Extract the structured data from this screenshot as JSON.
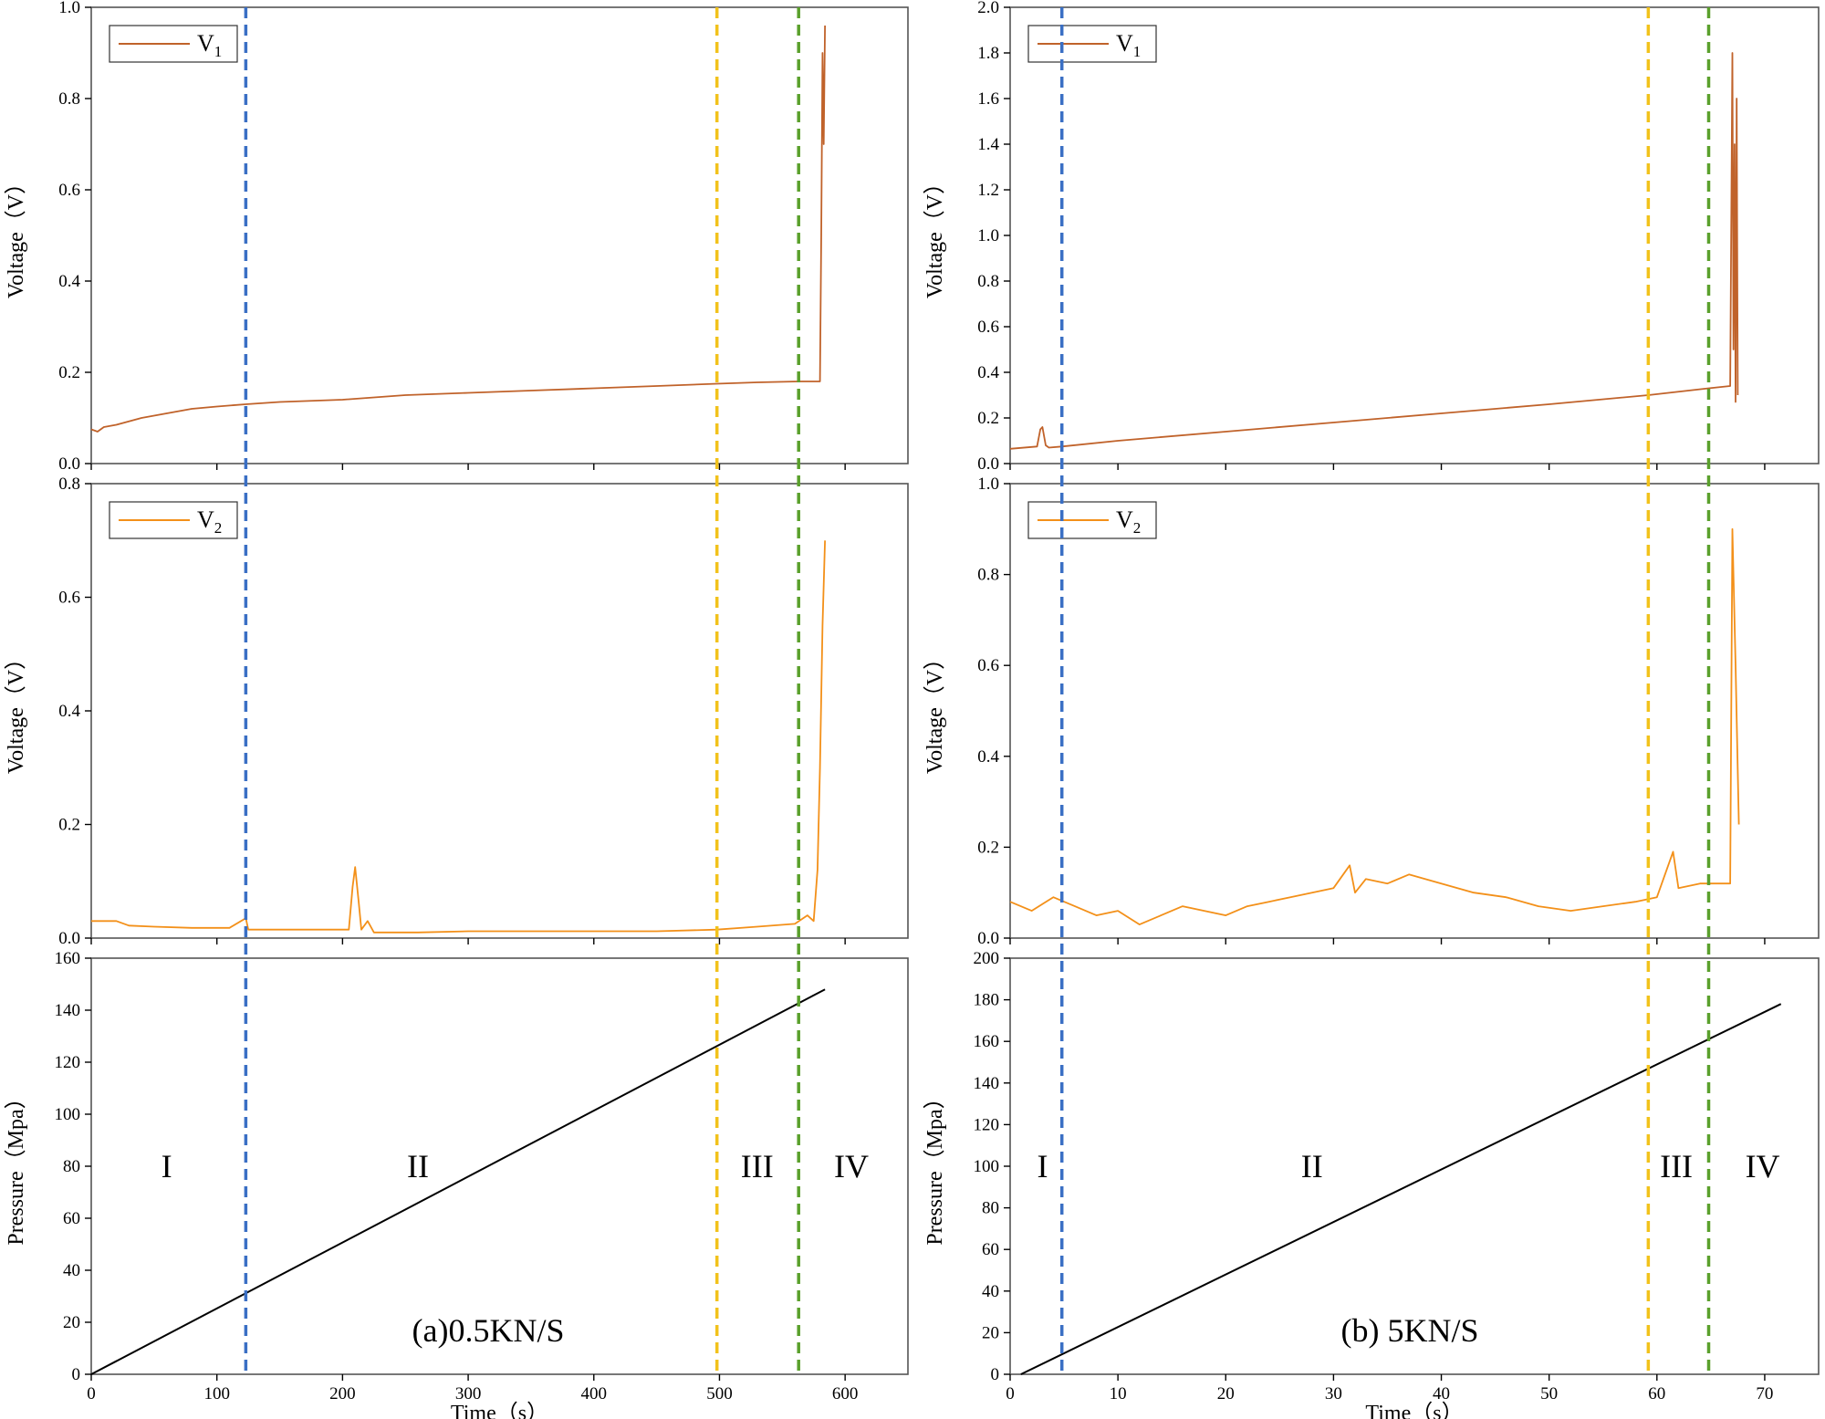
{
  "colors": {
    "v1": "#c0622a",
    "v2": "#f39019",
    "pressure": "#000000",
    "blue_line": "#3a6fc4",
    "yellow_line": "#f2c21b",
    "green_line": "#5aa02c",
    "frame": "#555555"
  },
  "stage_labels": [
    "I",
    "II",
    "III",
    "IV"
  ],
  "chart_data": [
    {
      "panel": "a",
      "caption": "(a)0.5KN/S",
      "type": "line",
      "xlabel": "Time（s）",
      "xlim": [
        0,
        650
      ],
      "xticks": [
        0,
        100,
        200,
        300,
        400,
        500,
        600
      ],
      "xticklabels": [
        "0",
        "100",
        "200",
        "300",
        "400",
        "500",
        "600"
      ],
      "stage_boundaries": [
        123,
        498,
        563
      ],
      "stage_label_x": [
        60,
        260,
        530,
        605
      ],
      "subplots": [
        {
          "ylabel": "Voltage（V）",
          "ylim": [
            0,
            1.0
          ],
          "yticks": [
            0,
            0.2,
            0.4,
            0.6,
            0.8,
            1.0
          ],
          "yticklabels": [
            "0.0",
            "0.2",
            "0.4",
            "0.6",
            "0.8",
            "1.0"
          ],
          "legend": {
            "label": "V",
            "sub": "1"
          },
          "series": [
            {
              "name": "V1",
              "color_key": "v1",
              "x": [
                0,
                5,
                10,
                20,
                40,
                60,
                80,
                100,
                123,
                150,
                200,
                250,
                300,
                350,
                400,
                450,
                498,
                530,
                563,
                580,
                581,
                582,
                583,
                584
              ],
              "y": [
                0.075,
                0.07,
                0.08,
                0.085,
                0.1,
                0.11,
                0.12,
                0.125,
                0.13,
                0.135,
                0.14,
                0.15,
                0.155,
                0.16,
                0.165,
                0.17,
                0.175,
                0.178,
                0.18,
                0.18,
                0.5,
                0.9,
                0.7,
                0.96
              ]
            }
          ]
        },
        {
          "ylabel": "Voltage（V）",
          "ylim": [
            0,
            0.8
          ],
          "yticks": [
            0,
            0.2,
            0.4,
            0.6,
            0.8
          ],
          "yticklabels": [
            "0.0",
            "0.2",
            "0.4",
            "0.6",
            "0.8"
          ],
          "legend": {
            "label": "V",
            "sub": "2"
          },
          "series": [
            {
              "name": "V2",
              "color_key": "v2",
              "x": [
                0,
                20,
                30,
                50,
                80,
                110,
                123,
                125,
                140,
                180,
                205,
                208,
                210,
                213,
                215,
                220,
                225,
                260,
                300,
                350,
                400,
                450,
                498,
                530,
                560,
                570,
                575,
                578,
                580,
                582,
                584
              ],
              "y": [
                0.03,
                0.03,
                0.022,
                0.02,
                0.018,
                0.018,
                0.035,
                0.015,
                0.015,
                0.015,
                0.015,
                0.09,
                0.125,
                0.06,
                0.015,
                0.03,
                0.01,
                0.01,
                0.012,
                0.012,
                0.012,
                0.012,
                0.015,
                0.02,
                0.025,
                0.04,
                0.03,
                0.12,
                0.3,
                0.55,
                0.7
              ]
            }
          ]
        },
        {
          "ylabel": "Pressure（Mpa）",
          "ylim": [
            0,
            160
          ],
          "yticks": [
            0,
            20,
            40,
            60,
            80,
            100,
            120,
            140,
            160
          ],
          "yticklabels": [
            "0",
            "20",
            "40",
            "60",
            "80",
            "100",
            "120",
            "140",
            "160"
          ],
          "series": [
            {
              "name": "Pressure",
              "color_key": "pressure",
              "x": [
                0,
                584
              ],
              "y": [
                0,
                148
              ]
            }
          ]
        }
      ]
    },
    {
      "panel": "b",
      "caption": "(b) 5KN/S",
      "type": "line",
      "xlabel": "Time（s）",
      "xlim": [
        0,
        75
      ],
      "xticks": [
        0,
        10,
        20,
        30,
        40,
        50,
        60,
        70
      ],
      "xticklabels": [
        "0",
        "10",
        "20",
        "30",
        "40",
        "50",
        "60",
        "70"
      ],
      "stage_boundaries": [
        4.8,
        59.2,
        64.8
      ],
      "stage_label_x": [
        3,
        28,
        61.8,
        69.8
      ],
      "subplots": [
        {
          "ylabel": "Voltage（V）",
          "ylim": [
            0,
            2.0
          ],
          "yticks": [
            0,
            0.2,
            0.4,
            0.6,
            0.8,
            1.0,
            1.2,
            1.4,
            1.6,
            1.8,
            2.0
          ],
          "yticklabels": [
            "0.0",
            "0.2",
            "0.4",
            "0.6",
            "0.8",
            "1.0",
            "1.2",
            "1.4",
            "1.6",
            "1.8",
            "2.0"
          ],
          "legend": {
            "label": "V",
            "sub": "1"
          },
          "series": [
            {
              "name": "V1",
              "color_key": "v1",
              "x": [
                0,
                2.5,
                2.8,
                3.0,
                3.3,
                3.6,
                4.8,
                10,
                20,
                30,
                40,
                50,
                59.2,
                64.8,
                66.8,
                67.0,
                67.1,
                67.2,
                67.3,
                67.4,
                67.5
              ],
              "y": [
                0.065,
                0.075,
                0.15,
                0.16,
                0.08,
                0.07,
                0.075,
                0.1,
                0.14,
                0.18,
                0.22,
                0.26,
                0.3,
                0.33,
                0.34,
                1.8,
                0.5,
                1.4,
                0.27,
                1.6,
                0.3
              ]
            }
          ]
        },
        {
          "ylabel": "Voltage（V）",
          "ylim": [
            0,
            1.0
          ],
          "yticks": [
            0,
            0.2,
            0.4,
            0.6,
            0.8,
            1.0
          ],
          "yticklabels": [
            "0.0",
            "0.2",
            "0.4",
            "0.6",
            "0.8",
            "1.0"
          ],
          "legend": {
            "label": "V",
            "sub": "2"
          },
          "series": [
            {
              "name": "V2",
              "color_key": "v2",
              "x": [
                0,
                2,
                4,
                6,
                8,
                10,
                12,
                14,
                16,
                18,
                20,
                22,
                24,
                26,
                28,
                30,
                31.5,
                32,
                33,
                35,
                37,
                40,
                43,
                46,
                49,
                52,
                55,
                58,
                60,
                61.5,
                62,
                64,
                66,
                66.8,
                67.0,
                67.3,
                67.6
              ],
              "y": [
                0.08,
                0.06,
                0.09,
                0.07,
                0.05,
                0.06,
                0.03,
                0.05,
                0.07,
                0.06,
                0.05,
                0.07,
                0.08,
                0.09,
                0.1,
                0.11,
                0.16,
                0.1,
                0.13,
                0.12,
                0.14,
                0.12,
                0.1,
                0.09,
                0.07,
                0.06,
                0.07,
                0.08,
                0.09,
                0.19,
                0.11,
                0.12,
                0.12,
                0.12,
                0.9,
                0.6,
                0.25
              ]
            }
          ]
        },
        {
          "ylabel": "Pressure（Mpa）",
          "ylim": [
            0,
            200
          ],
          "yticks": [
            0,
            20,
            40,
            60,
            80,
            100,
            120,
            140,
            160,
            180,
            200
          ],
          "yticklabels": [
            "0",
            "20",
            "40",
            "60",
            "80",
            "100",
            "120",
            "140",
            "160",
            "180",
            "200"
          ],
          "series": [
            {
              "name": "Pressure",
              "color_key": "pressure",
              "x": [
                1,
                71.5
              ],
              "y": [
                0,
                178
              ]
            }
          ]
        }
      ]
    }
  ]
}
